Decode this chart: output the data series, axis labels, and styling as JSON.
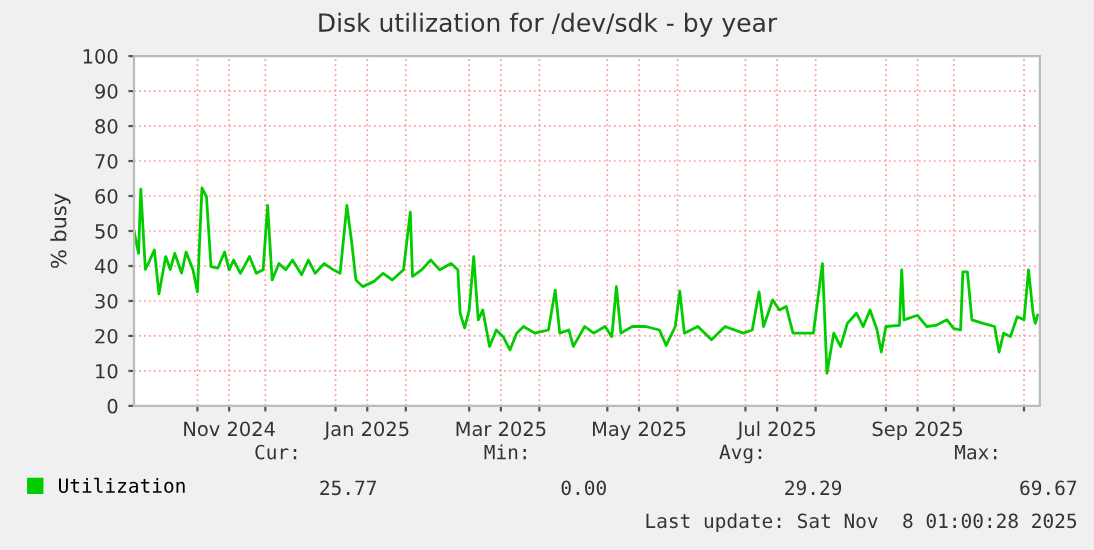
{
  "chart_data": {
    "type": "line",
    "title": "Disk utilization for /dev/sdk - by year",
    "ylabel": "% busy",
    "x": [
      "2024-10-04",
      "2024-10-06",
      "2024-10-07",
      "2024-10-09",
      "2024-10-11",
      "2024-10-13",
      "2024-10-15",
      "2024-10-18",
      "2024-10-20",
      "2024-10-22",
      "2024-10-25",
      "2024-10-27",
      "2024-10-30",
      "2024-11-01",
      "2024-11-03",
      "2024-11-05",
      "2024-11-07",
      "2024-11-10",
      "2024-11-13",
      "2024-11-15",
      "2024-11-17",
      "2024-11-20",
      "2024-11-24",
      "2024-11-27",
      "2024-11-30",
      "2024-12-02",
      "2024-12-04",
      "2024-12-07",
      "2024-12-10",
      "2024-12-13",
      "2024-12-17",
      "2024-12-20",
      "2024-12-23",
      "2024-12-27",
      "2024-12-31",
      "2025-01-03",
      "2025-01-06",
      "2025-01-08",
      "2025-01-10",
      "2025-01-13",
      "2025-01-18",
      "2025-01-22",
      "2025-01-26",
      "2025-01-31",
      "2025-02-03",
      "2025-02-04",
      "2025-02-08",
      "2025-02-12",
      "2025-02-16",
      "2025-02-21",
      "2025-02-24",
      "2025-02-25",
      "2025-02-27",
      "2025-03-01",
      "2025-03-03",
      "2025-03-05",
      "2025-03-07",
      "2025-03-10",
      "2025-03-13",
      "2025-03-16",
      "2025-03-19",
      "2025-03-22",
      "2025-03-25",
      "2025-03-30",
      "2025-04-05",
      "2025-04-08",
      "2025-04-10",
      "2025-04-14",
      "2025-04-16",
      "2025-04-21",
      "2025-04-25",
      "2025-04-30",
      "2025-05-03",
      "2025-05-05",
      "2025-05-07",
      "2025-05-12",
      "2025-05-18",
      "2025-05-24",
      "2025-05-27",
      "2025-05-31",
      "2025-06-02",
      "2025-06-04",
      "2025-06-10",
      "2025-06-16",
      "2025-06-22",
      "2025-06-30",
      "2025-07-04",
      "2025-07-07",
      "2025-07-09",
      "2025-07-13",
      "2025-07-16",
      "2025-07-19",
      "2025-07-22",
      "2025-07-31",
      "2025-08-04",
      "2025-08-06",
      "2025-08-09",
      "2025-08-12",
      "2025-08-15",
      "2025-08-19",
      "2025-08-22",
      "2025-08-25",
      "2025-08-28",
      "2025-08-30",
      "2025-09-01",
      "2025-09-07",
      "2025-09-08",
      "2025-09-09",
      "2025-09-15",
      "2025-09-19",
      "2025-09-23",
      "2025-09-28",
      "2025-10-01",
      "2025-10-04",
      "2025-10-05",
      "2025-10-07",
      "2025-10-09",
      "2025-10-14",
      "2025-10-19",
      "2025-10-21",
      "2025-10-23",
      "2025-10-26",
      "2025-10-29",
      "2025-11-01",
      "2025-11-03",
      "2025-11-05",
      "2025-11-06",
      "2025-11-07"
    ],
    "series": [
      {
        "name": "Utilization",
        "color": "#00cc00",
        "values": [
          50,
          43.6,
          62,
          39,
          41.7,
          44.6,
          32,
          42.7,
          39,
          43.6,
          38,
          44,
          39,
          32.6,
          62.3,
          59.8,
          39.8,
          39.4,
          44,
          38.9,
          41.7,
          37.9,
          42.7,
          37.9,
          38.9,
          57.3,
          36,
          40.7,
          38.9,
          41.7,
          37.5,
          41.7,
          37.9,
          40.7,
          38.9,
          37.9,
          57.3,
          47.4,
          36,
          34.1,
          35.6,
          37.9,
          36,
          38.9,
          55.4,
          37,
          38.9,
          41.7,
          38.9,
          40.7,
          38.9,
          26.5,
          22.3,
          27.4,
          42.7,
          24.6,
          27.4,
          17,
          21.7,
          19.8,
          16,
          20.8,
          22.7,
          20.8,
          21.7,
          33.1,
          20.8,
          21.7,
          17,
          22.7,
          20.8,
          22.7,
          19.8,
          34.1,
          20.8,
          22.7,
          22.7,
          21.7,
          17.3,
          22.7,
          32.8,
          20.8,
          22.7,
          18.9,
          22.7,
          20.8,
          21.7,
          32.6,
          22.7,
          30.3,
          27.4,
          28.4,
          20.8,
          20.8,
          40.7,
          9.3,
          20.8,
          17,
          23.6,
          26.5,
          22.7,
          27.4,
          22,
          15.4,
          22.7,
          23,
          38.9,
          24.6,
          25.9,
          22.7,
          23,
          24.6,
          22.1,
          21.7,
          38.3,
          38.3,
          24.6,
          23.6,
          22.7,
          15.4,
          20.8,
          19.8,
          25.5,
          24.6,
          38.9,
          26.5,
          23.6,
          25.9
        ]
      }
    ],
    "xlim": [
      "2024-10-04",
      "2025-11-08"
    ],
    "xticks": [
      {
        "value": "2024-11-01",
        "label": null
      },
      {
        "value": "2024-11-15",
        "label": "Nov 2024"
      },
      {
        "value": "2024-12-01",
        "label": null
      },
      {
        "value": "2025-01-01",
        "label": null
      },
      {
        "value": "2025-01-15",
        "label": "Jan 2025"
      },
      {
        "value": "2025-02-01",
        "label": null
      },
      {
        "value": "2025-03-01",
        "label": null
      },
      {
        "value": "2025-03-15",
        "label": "Mar 2025"
      },
      {
        "value": "2025-04-01",
        "label": null
      },
      {
        "value": "2025-05-01",
        "label": null
      },
      {
        "value": "2025-05-15",
        "label": "May 2025"
      },
      {
        "value": "2025-06-01",
        "label": null
      },
      {
        "value": "2025-07-01",
        "label": null
      },
      {
        "value": "2025-07-15",
        "label": "Jul 2025"
      },
      {
        "value": "2025-08-01",
        "label": null
      },
      {
        "value": "2025-09-01",
        "label": null
      },
      {
        "value": "2025-09-15",
        "label": "Sep 2025"
      },
      {
        "value": "2025-10-01",
        "label": null
      },
      {
        "value": "2025-11-01",
        "label": null
      }
    ],
    "ylim": [
      0,
      100
    ],
    "yticks": [
      0,
      10,
      20,
      30,
      40,
      50,
      60,
      70,
      80,
      90,
      100
    ],
    "grid": true,
    "legend": "bottom",
    "marker": "none",
    "line_style": "solid",
    "annotations": [
      "Cur:",
      "Min:",
      "Avg:",
      "Max:",
      "25.77",
      "0.00",
      "29.29",
      "69.67",
      "Last update: Sat Nov  8 01:00:28 2025"
    ]
  }
}
